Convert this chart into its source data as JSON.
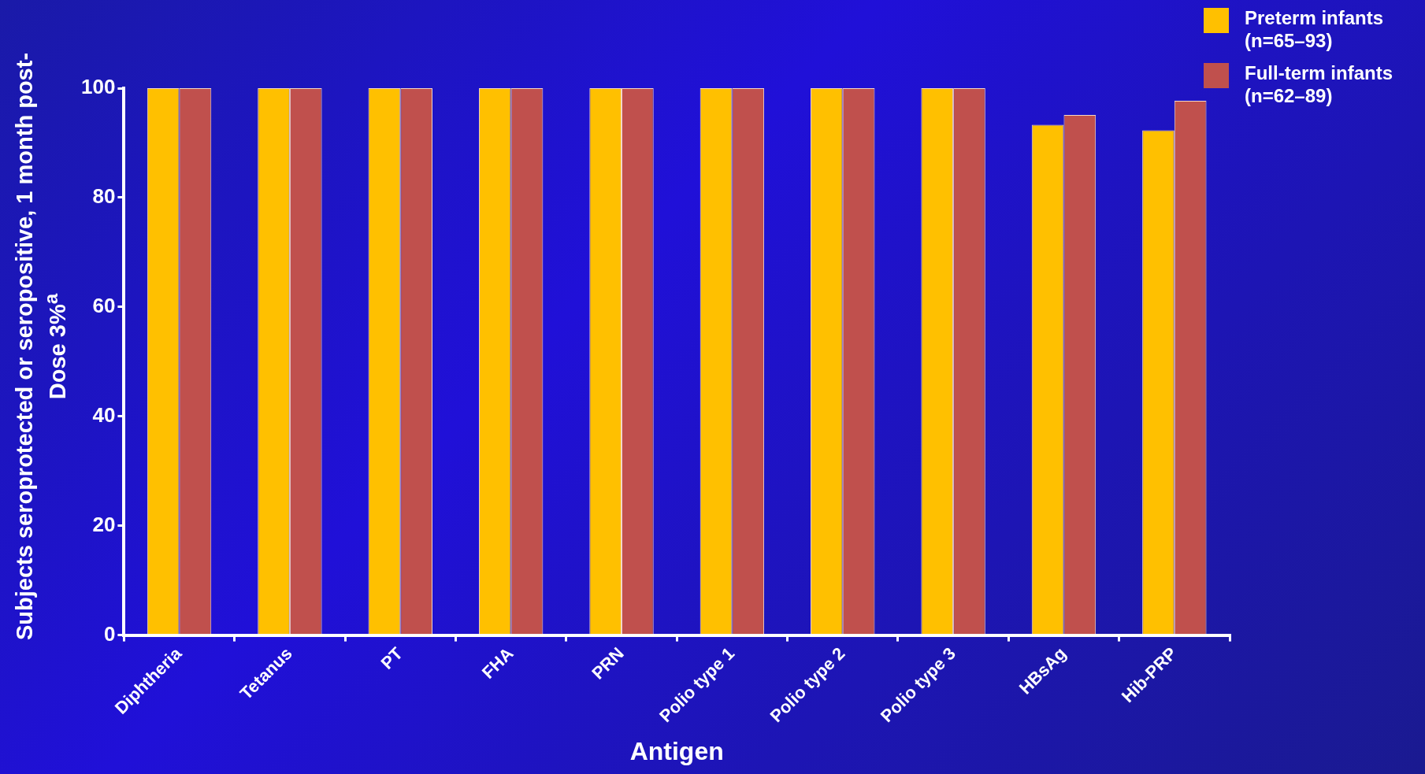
{
  "chart_data": {
    "type": "bar",
    "xlabel": "Antigen",
    "ylabel": "Subjects seroprotected or seropositive, 1 month post-Dose 3%$^{a}$",
    "categories": [
      "Diphtheria",
      "Tetanus",
      "PT",
      "FHA",
      "PRN",
      "Polio type 1",
      "Polio type 2",
      "Polio type 3",
      "HBsAg",
      "Hib-PRP"
    ],
    "series": [
      {
        "name": "Preterm infants (n=65–93)",
        "color": "#ffc000",
        "values": [
          100,
          100,
          100,
          100,
          100,
          100,
          100,
          100,
          93.3,
          92.3
        ]
      },
      {
        "name": "Full-term infants (n=62–89)",
        "color": "#c0504d",
        "values": [
          100,
          100,
          100,
          100,
          100,
          100,
          100,
          100,
          95.1,
          97.7
        ]
      }
    ],
    "ylim": [
      0,
      100
    ],
    "yticks": [
      0,
      20,
      40,
      60,
      80,
      100
    ],
    "grid": false,
    "legend": "top right"
  }
}
